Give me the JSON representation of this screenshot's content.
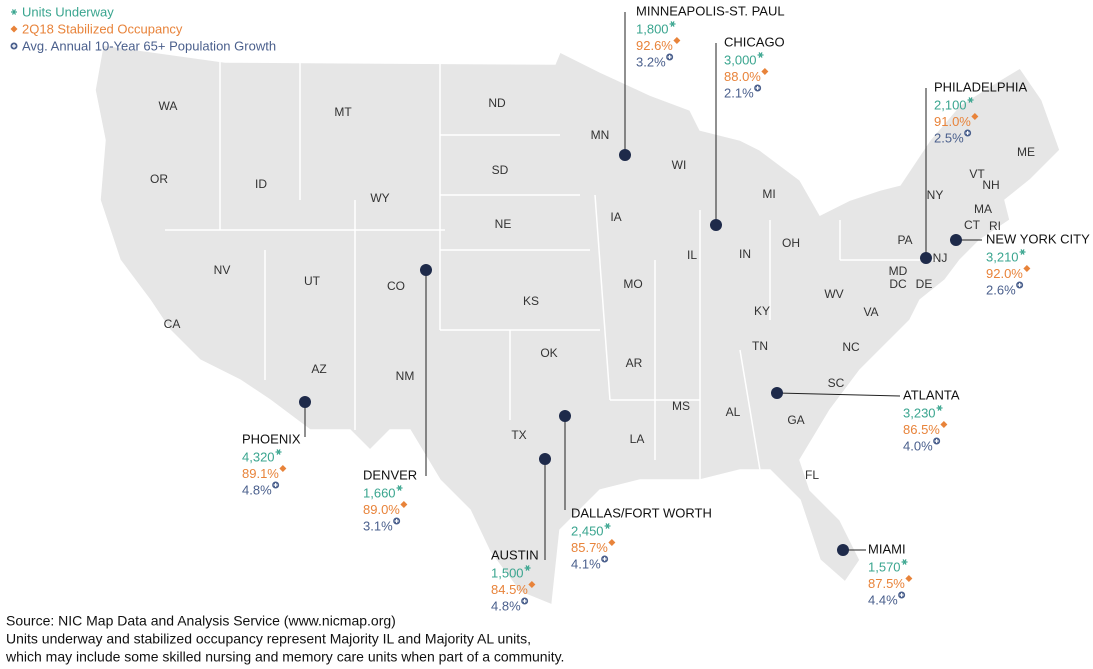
{
  "legend": [
    "Units Underway",
    "2Q18 Stabilized Occupancy",
    "Avg. Annual 10-Year 65+ Population Growth"
  ],
  "states": [
    "WA",
    "OR",
    "CA",
    "ID",
    "NV",
    "MT",
    "WY",
    "UT",
    "AZ",
    "CO",
    "NM",
    "ND",
    "SD",
    "NE",
    "KS",
    "OK",
    "TX",
    "MN",
    "IA",
    "MO",
    "AR",
    "LA",
    "WI",
    "IL",
    "MI",
    "IN",
    "OH",
    "KY",
    "TN",
    "MS",
    "AL",
    "GA",
    "FL",
    "SC",
    "NC",
    "VA",
    "WV",
    "PA",
    "NY",
    "VT",
    "NH",
    "ME",
    "MA",
    "CT",
    "RI",
    "NJ",
    "MD",
    "DC",
    "DE"
  ],
  "markets": [
    {
      "name": "MINNEAPOLIS-ST. PAUL",
      "units": "1,800",
      "occupancy": "92.6%",
      "growth": "3.2%"
    },
    {
      "name": "CHICAGO",
      "units": "3,000",
      "occupancy": "88.0%",
      "growth": "2.1%"
    },
    {
      "name": "PHILADELPHIA",
      "units": "2,100",
      "occupancy": "91.0%",
      "growth": "2.5%"
    },
    {
      "name": "NEW YORK CITY",
      "units": "3,210",
      "occupancy": "92.0%",
      "growth": "2.6%"
    },
    {
      "name": "ATLANTA",
      "units": "3,230",
      "occupancy": "86.5%",
      "growth": "4.0%"
    },
    {
      "name": "MIAMI",
      "units": "1,570",
      "occupancy": "87.5%",
      "growth": "4.4%"
    },
    {
      "name": "DALLAS/FORT WORTH",
      "units": "2,450",
      "occupancy": "85.7%",
      "growth": "4.1%"
    },
    {
      "name": "AUSTIN",
      "units": "1,500",
      "occupancy": "84.5%",
      "growth": "4.8%"
    },
    {
      "name": "DENVER",
      "units": "1,660",
      "occupancy": "89.0%",
      "growth": "3.1%"
    },
    {
      "name": "PHOENIX",
      "units": "4,320",
      "occupancy": "89.1%",
      "growth": "4.8%"
    }
  ],
  "source": [
    "Source: NIC Map Data and Analysis Service (www.nicmap.org)",
    "Units underway and stabilized occupancy represent Majority IL and Majority AL units,",
    "which may include some skilled nursing and memory care units when part of a community."
  ]
}
